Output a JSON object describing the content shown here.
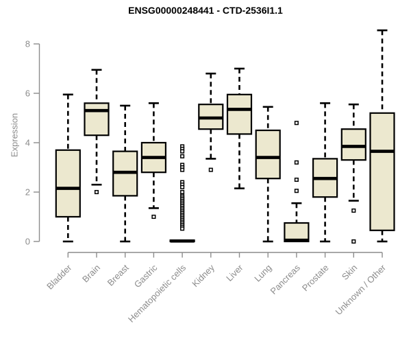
{
  "chart_data": {
    "type": "boxplot",
    "title": "ENSG00000248441 - CTD-2536I1.1",
    "ylabel": "Expression",
    "xlabel": "",
    "ylim": [
      0,
      8.6
    ],
    "yticks": [
      0,
      2,
      4,
      6,
      8
    ],
    "grid": false,
    "legend": "none",
    "categories": [
      "Bladder",
      "Brain",
      "Breast",
      "Gastric",
      "Hematopoietic cells",
      "Kidney",
      "Liver",
      "Lung",
      "Pancreas",
      "Prostate",
      "Skin",
      "Unknown / Other"
    ],
    "series": [
      {
        "name": "Bladder",
        "low": 0,
        "q1": 1.0,
        "median": 2.15,
        "q3": 3.7,
        "high": 5.95,
        "outliers": []
      },
      {
        "name": "Brain",
        "low": 2.3,
        "q1": 4.3,
        "median": 5.3,
        "q3": 5.6,
        "high": 6.95,
        "outliers": [
          2.0
        ]
      },
      {
        "name": "Breast",
        "low": 0,
        "q1": 1.85,
        "median": 2.8,
        "q3": 3.65,
        "high": 5.5,
        "outliers": []
      },
      {
        "name": "Gastric",
        "low": 1.35,
        "q1": 2.8,
        "median": 3.4,
        "q3": 4.0,
        "high": 5.6,
        "outliers": [
          1.0
        ]
      },
      {
        "name": "Hematopoietic cells",
        "low": 0,
        "q1": 0,
        "median": 0.02,
        "q3": 0.05,
        "high": 0.05,
        "outliers": [
          3.85,
          3.75,
          3.65,
          3.45,
          3.1,
          3.0,
          2.9,
          2.4,
          2.3,
          2.2,
          2.0,
          1.85,
          1.78,
          1.71,
          1.64,
          1.57,
          1.5,
          1.43,
          1.36,
          1.29,
          1.22,
          1.15,
          1.08,
          1.01,
          0.94,
          0.87,
          0.8,
          0.73,
          0.66,
          0.59,
          0.52
        ]
      },
      {
        "name": "Kidney",
        "low": 3.35,
        "q1": 4.55,
        "median": 5.0,
        "q3": 5.55,
        "high": 6.8,
        "outliers": [
          2.9
        ]
      },
      {
        "name": "Liver",
        "low": 2.15,
        "q1": 4.35,
        "median": 5.35,
        "q3": 5.95,
        "high": 7.0,
        "outliers": []
      },
      {
        "name": "Lung",
        "low": 0,
        "q1": 2.55,
        "median": 3.4,
        "q3": 4.5,
        "high": 5.45,
        "outliers": []
      },
      {
        "name": "Pancreas",
        "low": 0,
        "q1": 0,
        "median": 0.05,
        "q3": 0.75,
        "high": 1.55,
        "outliers": [
          4.8,
          3.2,
          2.5,
          2.05
        ]
      },
      {
        "name": "Prostate",
        "low": 0,
        "q1": 1.8,
        "median": 2.55,
        "q3": 3.35,
        "high": 5.6,
        "outliers": []
      },
      {
        "name": "Skin",
        "low": 1.65,
        "q1": 3.3,
        "median": 3.85,
        "q3": 4.55,
        "high": 5.55,
        "outliers": [
          1.25,
          0
        ]
      },
      {
        "name": "Unknown / Other",
        "low": 0,
        "q1": 0.45,
        "median": 3.65,
        "q3": 5.2,
        "high": 8.55,
        "outliers": []
      }
    ],
    "colors": {
      "box_fill": "#ECE8CF",
      "box_stroke": "#000000",
      "median": "#000000",
      "whisker": "#000000",
      "outlier_stroke": "#000000",
      "outlier_fill": "#ffffff",
      "axis": "#8c8c8c",
      "tick_label": "#8c8c8c",
      "title": "#000000",
      "background": "#ffffff"
    }
  }
}
